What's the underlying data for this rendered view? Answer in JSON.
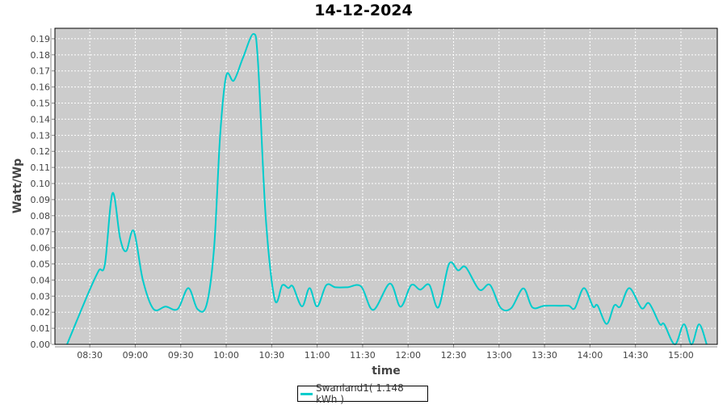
{
  "chart_data": {
    "type": "line",
    "title": "14-12-2024",
    "xlabel": "time",
    "ylabel": "Watt/Wp",
    "xlim": [
      "08:07",
      "15:24"
    ],
    "ylim": [
      0,
      0.1965
    ],
    "x_ticks": [
      "08:30",
      "09:00",
      "09:30",
      "10:00",
      "10:30",
      "11:00",
      "11:30",
      "12:00",
      "12:30",
      "13:00",
      "13:30",
      "14:00",
      "14:30",
      "15:00"
    ],
    "y_ticks": [
      "0.00",
      "0.01",
      "0.02",
      "0.03",
      "0.04",
      "0.05",
      "0.06",
      "0.07",
      "0.08",
      "0.09",
      "0.10",
      "0.11",
      "0.12",
      "0.13",
      "0.14",
      "0.15",
      "0.16",
      "0.17",
      "0.18",
      "0.19"
    ],
    "grid": true,
    "legend_position": "bottom",
    "plot_background": "#cccccc",
    "series": [
      {
        "name": "Swanland1( 1.148 kWh )",
        "color": "#00cccc",
        "x": [
          "08:15",
          "08:22",
          "08:30",
          "08:36",
          "08:40",
          "08:45",
          "08:50",
          "08:54",
          "08:59",
          "09:05",
          "09:12",
          "09:20",
          "09:28",
          "09:35",
          "09:41",
          "09:47",
          "09:52",
          "09:56",
          "10:00",
          "10:05",
          "10:11",
          "10:18",
          "10:21",
          "10:26",
          "10:32",
          "10:37",
          "10:41",
          "10:44",
          "10:50",
          "10:55",
          "11:00",
          "11:06",
          "11:12",
          "11:20",
          "11:29",
          "11:37",
          "11:48",
          "11:55",
          "12:02",
          "12:08",
          "12:14",
          "12:20",
          "12:27",
          "12:33",
          "12:38",
          "12:47",
          "12:54",
          "13:01",
          "13:08",
          "13:16",
          "13:22",
          "13:30",
          "13:40",
          "13:46",
          "13:50",
          "13:56",
          "14:02",
          "14:05",
          "14:11",
          "14:16",
          "14:20",
          "14:26",
          "14:34",
          "14:39",
          "14:46",
          "14:49",
          "14:56",
          "15:02",
          "15:07",
          "15:12",
          "15:17"
        ],
        "y": [
          0,
          0.016,
          0.034,
          0.046,
          0.05,
          0.094,
          0.066,
          0.058,
          0.0705,
          0.04,
          0.022,
          0.0235,
          0.022,
          0.035,
          0.022,
          0.0245,
          0.06,
          0.13,
          0.167,
          0.164,
          0.178,
          0.193,
          0.175,
          0.08,
          0.028,
          0.0368,
          0.035,
          0.036,
          0.0236,
          0.035,
          0.0235,
          0.0368,
          0.0355,
          0.0355,
          0.036,
          0.0214,
          0.0378,
          0.0234,
          0.0368,
          0.034,
          0.037,
          0.023,
          0.05,
          0.046,
          0.048,
          0.034,
          0.037,
          0.0228,
          0.0225,
          0.0348,
          0.023,
          0.024,
          0.024,
          0.024,
          0.0225,
          0.035,
          0.0235,
          0.0242,
          0.0127,
          0.0242,
          0.0235,
          0.035,
          0.0225,
          0.0255,
          0.0127,
          0.0125,
          0,
          0.0125,
          0,
          0.0125,
          0
        ]
      }
    ]
  }
}
